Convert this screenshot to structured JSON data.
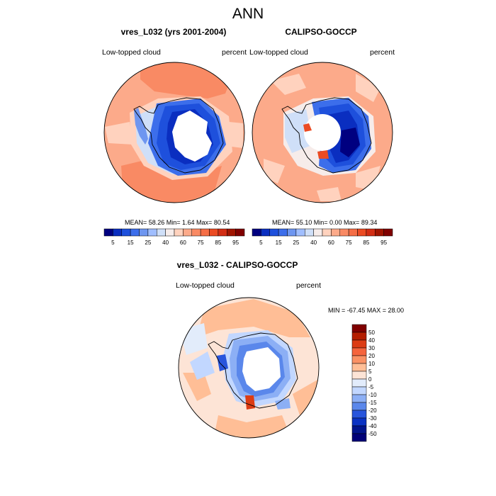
{
  "title": "ANN",
  "panels": [
    {
      "title": "vres_L032 (yrs 2001-2004)",
      "left_label": "Low-topped cloud",
      "right_label": "percent",
      "stats": "MEAN=  58.26  Min=   1.64  Max=  80.54"
    },
    {
      "title": "CALIPSO-GOCCP",
      "left_label": "Low-topped cloud",
      "right_label": "percent",
      "stats": "MEAN=  55.10  Min=   0.00  Max=  89.34"
    },
    {
      "title": "vres_L032 - CALIPSO-GOCCP",
      "left_label": "Low-topped cloud",
      "right_label": "percent",
      "stats": "MIN = -67.45 MAX =  28.00"
    }
  ],
  "abs_colorbar": {
    "tick_labels": [
      "5",
      "15",
      "25",
      "40",
      "60",
      "75",
      "85",
      "95"
    ],
    "colors": [
      "#000080",
      "#0a2ec0",
      "#1e50dc",
      "#3c6eeb",
      "#6e96f0",
      "#a0beff",
      "#cfdff8",
      "#f6ecea",
      "#ffd2be",
      "#fcaa8a",
      "#f98a64",
      "#f56e46",
      "#eb4b23",
      "#d22d14",
      "#a01400",
      "#800000"
    ]
  },
  "diff_colorbar": {
    "tick_labels": [
      "50",
      "40",
      "30",
      "20",
      "10",
      "5",
      "0",
      "-5",
      "-10",
      "-15",
      "-20",
      "-30",
      "-40",
      "-50"
    ],
    "colors": [
      "#800000",
      "#b41e00",
      "#dc3c14",
      "#f5643c",
      "#fa9164",
      "#ffbe96",
      "#fde4d6",
      "#e2ecfb",
      "#c2d7ff",
      "#8caff5",
      "#5a87eb",
      "#2855dc",
      "#0a32c3",
      "#00148c",
      "#000078"
    ]
  }
}
